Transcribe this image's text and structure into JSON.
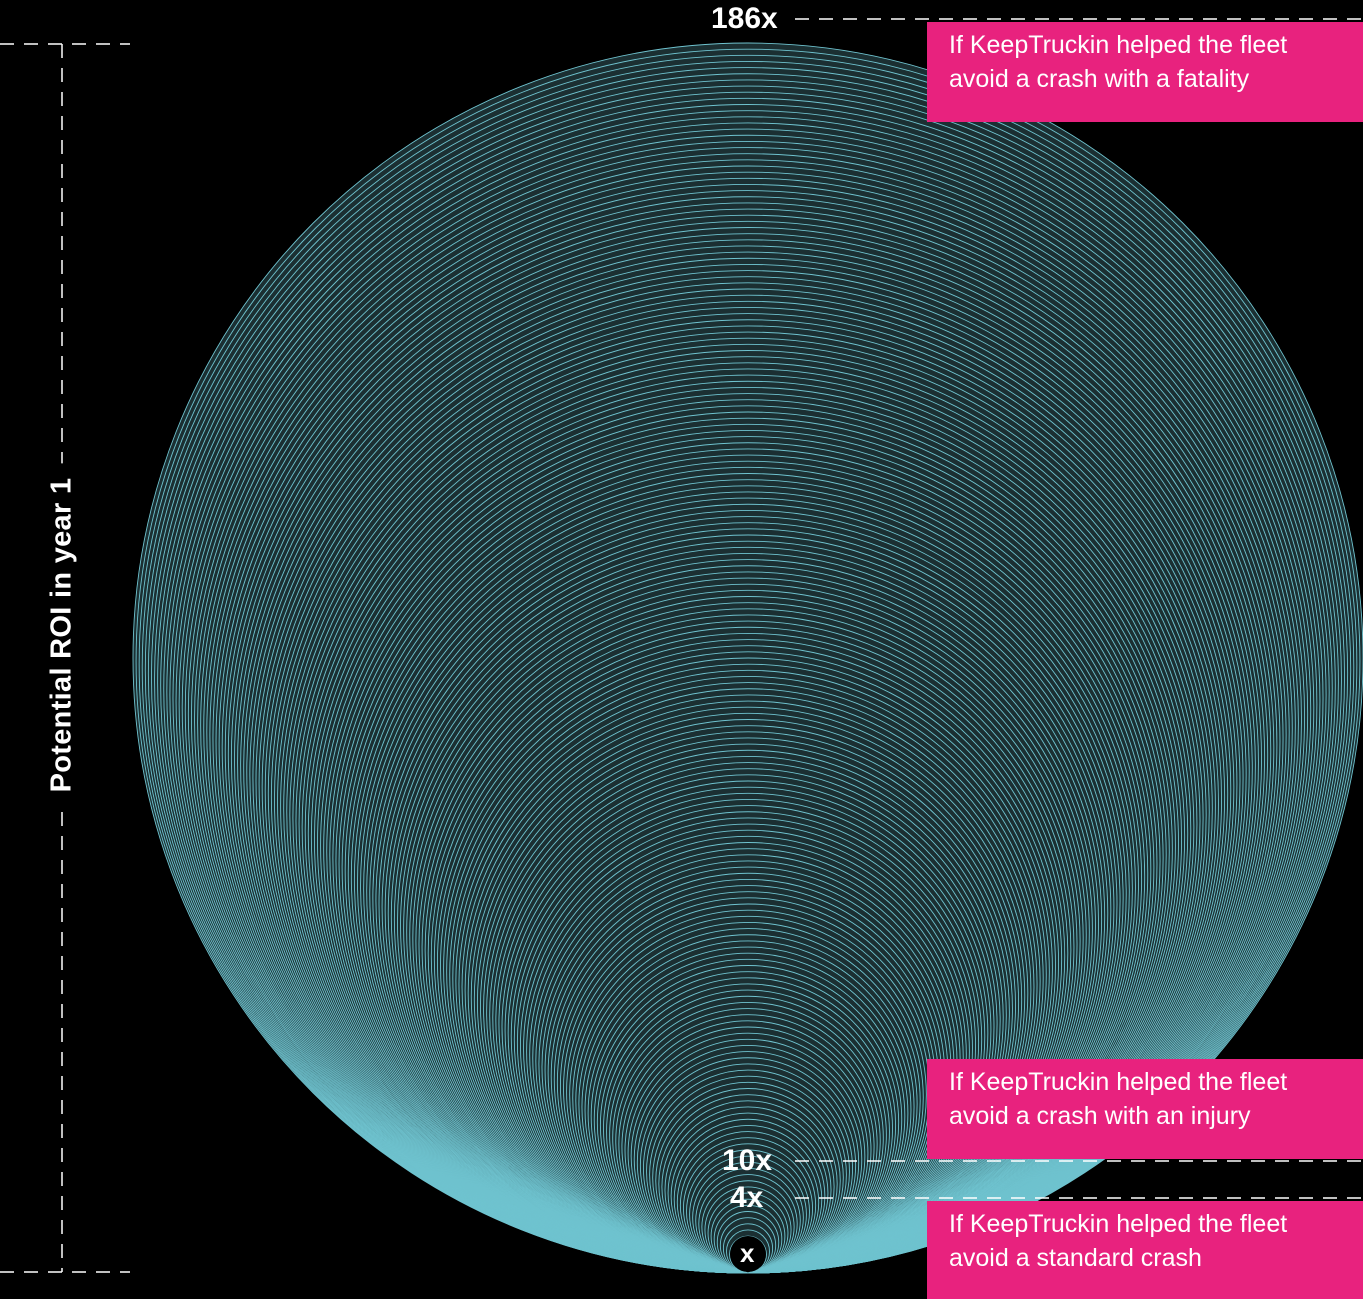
{
  "axis_title": "Potential ROI in year 1",
  "markers": [
    {
      "label": "186x",
      "value": 186
    },
    {
      "label": "10x",
      "value": 10
    },
    {
      "label": "4x",
      "value": 4
    },
    {
      "label": "x",
      "value": 1
    }
  ],
  "callouts": [
    {
      "line1": "If KeepTruckin helped the fleet",
      "line2": "avoid a crash with a fatality"
    },
    {
      "line1": "If KeepTruckin helped the fleet",
      "line2": "avoid a crash with an injury"
    },
    {
      "line1": "If KeepTruckin helped the fleet",
      "line2": "avoid a standard crash"
    }
  ],
  "colors": {
    "background": "#000000",
    "ring_stroke": "#6FC3CF",
    "ring_fill": "#4E8890",
    "callout_bg": "#E8227E",
    "dash": "#FFFFFF"
  }
}
